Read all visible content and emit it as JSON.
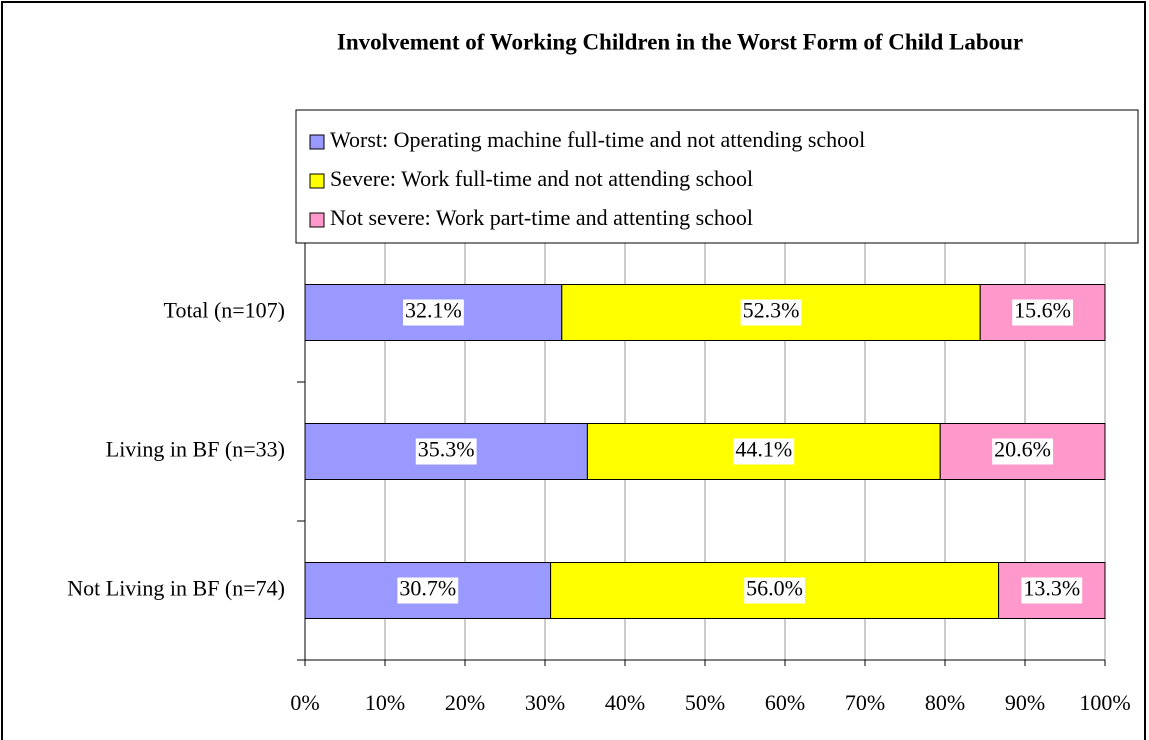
{
  "chart_data": {
    "type": "stacked_bar_horizontal",
    "title": "Involvement of Working Children in the Worst Form of Child Labour",
    "categories": [
      "Total (n=107)",
      "Living in BF (n=33)",
      "Not Living in BF (n=74)"
    ],
    "series": [
      {
        "name": "Worst: Operating machine full-time and not attending school",
        "color": "#9999ff",
        "values": [
          32.1,
          35.3,
          30.7
        ],
        "value_labels": [
          "32.1%",
          "35.3%",
          "30.7%"
        ]
      },
      {
        "name": "Severe: Work full-time and not attending school",
        "color": "#ffff00",
        "values": [
          52.3,
          44.1,
          56.0
        ],
        "value_labels": [
          "52.3%",
          "44.1%",
          "56.0%"
        ]
      },
      {
        "name": "Not severe: Work part-time and attenting school",
        "color": "#ff99cc",
        "values": [
          15.6,
          20.6,
          13.3
        ],
        "value_labels": [
          "15.6%",
          "20.6%",
          "13.3%"
        ]
      }
    ],
    "xlim": [
      0,
      100
    ],
    "xticks": [
      {
        "value": 0,
        "label": "0%"
      },
      {
        "value": 10,
        "label": "10%"
      },
      {
        "value": 20,
        "label": "20%"
      },
      {
        "value": 30,
        "label": "30%"
      },
      {
        "value": 40,
        "label": "40%"
      },
      {
        "value": 50,
        "label": "50%"
      },
      {
        "value": 60,
        "label": "60%"
      },
      {
        "value": 70,
        "label": "70%"
      },
      {
        "value": 80,
        "label": "80%"
      },
      {
        "value": 90,
        "label": "90%"
      },
      {
        "value": 100,
        "label": "100%"
      }
    ],
    "grid": true,
    "legend": "top"
  }
}
